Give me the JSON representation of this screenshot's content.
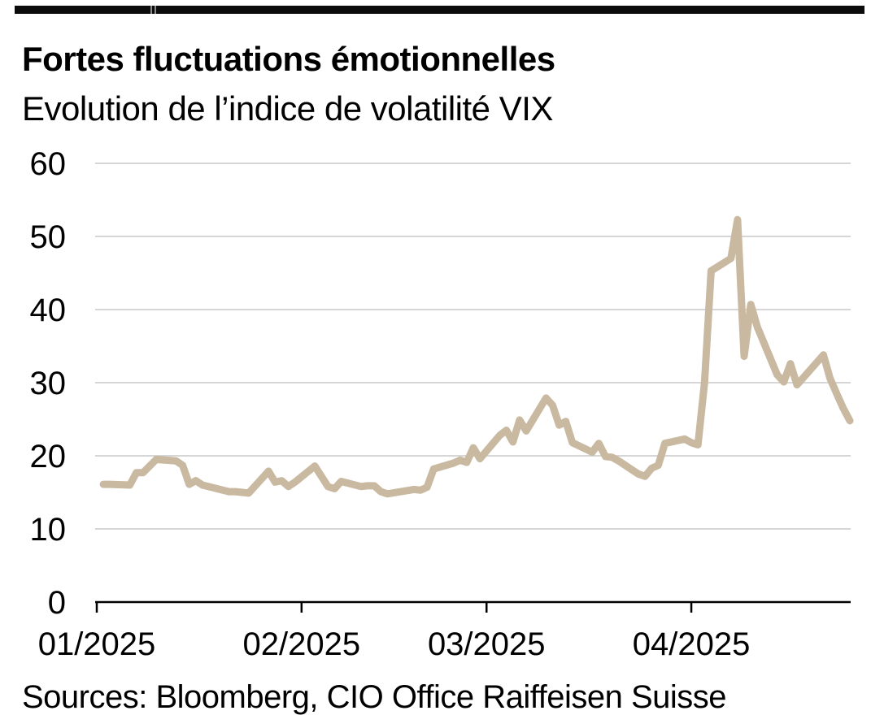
{
  "page": {
    "title": "Fortes fluctuations émotionnelles",
    "subtitle": "Evolution de l’indice de volatilité VIX",
    "source": "Sources: Bloomberg, CIO Office Raiffeisen Suisse"
  },
  "colors": {
    "line": "#c9b9a0",
    "grid": "#c9c9c9",
    "axis": "#000000",
    "text": "#000000",
    "top_rule": "#0b0b0b"
  },
  "chart_data": {
    "type": "line",
    "title": "Fortes fluctuations émotionnelles",
    "subtitle": "Evolution de l’indice de volatilité VIX",
    "xlabel": "",
    "ylabel": "",
    "ylim": [
      0,
      60
    ],
    "yticks": [
      0,
      10,
      20,
      30,
      40,
      50,
      60
    ],
    "grid": "horizontal",
    "legend_position": "none",
    "x_range": [
      "2025-01-01",
      "2025-04-25"
    ],
    "xticks": [
      {
        "label": "01/2025",
        "date": "2025-01-01"
      },
      {
        "label": "02/2025",
        "date": "2025-02-01"
      },
      {
        "label": "03/2025",
        "date": "2025-03-01"
      },
      {
        "label": "04/2025",
        "date": "2025-04-01"
      }
    ],
    "series": [
      {
        "name": "VIX",
        "points": [
          [
            "2025-01-02",
            16.1
          ],
          [
            "2025-01-03",
            16.1
          ],
          [
            "2025-01-06",
            16.0
          ],
          [
            "2025-01-07",
            17.7
          ],
          [
            "2025-01-08",
            17.7
          ],
          [
            "2025-01-10",
            19.5
          ],
          [
            "2025-01-13",
            19.3
          ],
          [
            "2025-01-14",
            18.7
          ],
          [
            "2025-01-15",
            16.1
          ],
          [
            "2025-01-16",
            16.6
          ],
          [
            "2025-01-17",
            16.0
          ],
          [
            "2025-01-21",
            15.1
          ],
          [
            "2025-01-22",
            15.1
          ],
          [
            "2025-01-23",
            15.0
          ],
          [
            "2025-01-24",
            14.9
          ],
          [
            "2025-01-27",
            17.9
          ],
          [
            "2025-01-28",
            16.4
          ],
          [
            "2025-01-29",
            16.6
          ],
          [
            "2025-01-30",
            15.8
          ],
          [
            "2025-01-31",
            16.4
          ],
          [
            "2025-02-03",
            18.6
          ],
          [
            "2025-02-04",
            17.2
          ],
          [
            "2025-02-05",
            15.8
          ],
          [
            "2025-02-06",
            15.5
          ],
          [
            "2025-02-07",
            16.5
          ],
          [
            "2025-02-10",
            15.8
          ],
          [
            "2025-02-11",
            15.9
          ],
          [
            "2025-02-12",
            15.9
          ],
          [
            "2025-02-13",
            15.1
          ],
          [
            "2025-02-14",
            14.8
          ],
          [
            "2025-02-18",
            15.4
          ],
          [
            "2025-02-19",
            15.3
          ],
          [
            "2025-02-20",
            15.7
          ],
          [
            "2025-02-21",
            18.2
          ],
          [
            "2025-02-24",
            19.0
          ],
          [
            "2025-02-25",
            19.4
          ],
          [
            "2025-02-26",
            19.1
          ],
          [
            "2025-02-27",
            21.1
          ],
          [
            "2025-02-28",
            19.6
          ],
          [
            "2025-03-03",
            22.8
          ],
          [
            "2025-03-04",
            23.5
          ],
          [
            "2025-03-05",
            21.9
          ],
          [
            "2025-03-06",
            24.9
          ],
          [
            "2025-03-07",
            23.4
          ],
          [
            "2025-03-10",
            27.9
          ],
          [
            "2025-03-11",
            26.9
          ],
          [
            "2025-03-12",
            24.2
          ],
          [
            "2025-03-13",
            24.7
          ],
          [
            "2025-03-14",
            21.8
          ],
          [
            "2025-03-17",
            20.5
          ],
          [
            "2025-03-18",
            21.7
          ],
          [
            "2025-03-19",
            19.9
          ],
          [
            "2025-03-20",
            19.8
          ],
          [
            "2025-03-21",
            19.3
          ],
          [
            "2025-03-24",
            17.5
          ],
          [
            "2025-03-25",
            17.2
          ],
          [
            "2025-03-26",
            18.3
          ],
          [
            "2025-03-27",
            18.7
          ],
          [
            "2025-03-28",
            21.7
          ],
          [
            "2025-03-31",
            22.3
          ],
          [
            "2025-04-01",
            21.8
          ],
          [
            "2025-04-02",
            21.5
          ],
          [
            "2025-04-03",
            30.0
          ],
          [
            "2025-04-04",
            45.3
          ],
          [
            "2025-04-07",
            47.0
          ],
          [
            "2025-04-08",
            52.3
          ],
          [
            "2025-04-09",
            33.6
          ],
          [
            "2025-04-10",
            40.7
          ],
          [
            "2025-04-11",
            37.6
          ],
          [
            "2025-04-14",
            31.1
          ],
          [
            "2025-04-15",
            30.1
          ],
          [
            "2025-04-16",
            32.6
          ],
          [
            "2025-04-17",
            29.7
          ],
          [
            "2025-04-21",
            33.8
          ],
          [
            "2025-04-22",
            30.6
          ],
          [
            "2025-04-23",
            28.5
          ],
          [
            "2025-04-24",
            26.5
          ],
          [
            "2025-04-25",
            24.8
          ]
        ]
      }
    ]
  }
}
